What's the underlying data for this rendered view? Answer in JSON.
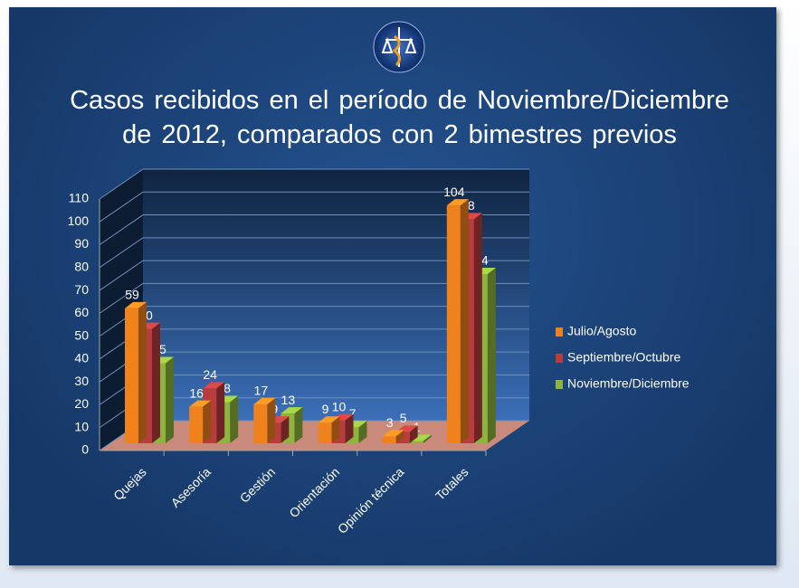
{
  "chart_data": {
    "type": "bar3d",
    "title": "Casos recibidos en el período de Noviembre/Diciembre de 2012, comparados con 2 bimestres previos",
    "categories": [
      "Quejas",
      "Asesoría",
      "Gestión",
      "Orientación",
      "Opinión técnica",
      "Totales"
    ],
    "series": [
      {
        "name": "Julio/Agosto",
        "color": "#f0821e",
        "values": [
          59,
          16,
          17,
          9,
          3,
          104
        ]
      },
      {
        "name": "Septiembre/Octubre",
        "color": "#b83c3c",
        "values": [
          50,
          24,
          9,
          10,
          5,
          98
        ]
      },
      {
        "name": "Noviembre/Diciembre",
        "color": "#8db43c",
        "values": [
          35,
          18,
          13,
          7,
          1,
          74
        ]
      }
    ],
    "ylim": [
      0,
      110
    ],
    "yticks": [
      0,
      10,
      20,
      30,
      40,
      50,
      60,
      70,
      80,
      90,
      100,
      110
    ],
    "grid": true,
    "legend": "right"
  }
}
